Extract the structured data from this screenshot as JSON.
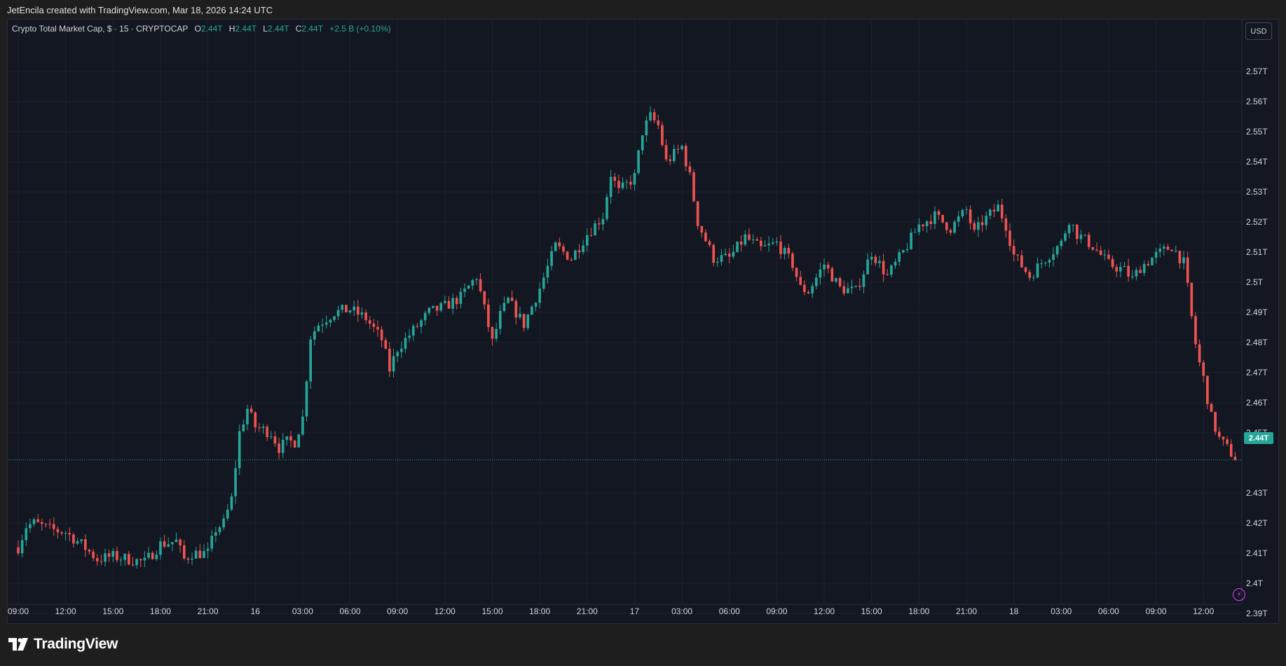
{
  "header": {
    "creator_line": "JetEncila created with TradingView.com, Mar 18, 2026 14:24 UTC"
  },
  "legend": {
    "symbol": "Crypto Total Market Cap, $ · 15 · CRYPTOCAP",
    "open_label": "O",
    "open": "2.44T",
    "high_label": "H",
    "high": "2.44T",
    "low_label": "L",
    "low": "2.44T",
    "close_label": "C",
    "close": "2.44T",
    "change": "+2.5 B (+0.10%)"
  },
  "currency": "USD",
  "last_price_label": "2.44T",
  "brand": {
    "name": "TradingView"
  },
  "colors": {
    "background": "#131722",
    "up": "#26a69a",
    "down": "#ef5350",
    "grid": "#1e222d",
    "axis_text": "#d1d4dc"
  },
  "chart_data": {
    "type": "candlestick",
    "title": "Crypto Total Market Cap, $ · 15 · CRYPTOCAP",
    "ylabel": "",
    "ylim": [
      2.385,
      2.575
    ],
    "last_price": 2.441,
    "y_ticks": [
      {
        "value": 2.57,
        "label": "2.57T"
      },
      {
        "value": 2.56,
        "label": "2.56T"
      },
      {
        "value": 2.55,
        "label": "2.55T"
      },
      {
        "value": 2.54,
        "label": "2.54T"
      },
      {
        "value": 2.53,
        "label": "2.53T"
      },
      {
        "value": 2.52,
        "label": "2.52T"
      },
      {
        "value": 2.51,
        "label": "2.51T"
      },
      {
        "value": 2.5,
        "label": "2.5T"
      },
      {
        "value": 2.49,
        "label": "2.49T"
      },
      {
        "value": 2.48,
        "label": "2.48T"
      },
      {
        "value": 2.47,
        "label": "2.47T"
      },
      {
        "value": 2.46,
        "label": "2.46T"
      },
      {
        "value": 2.45,
        "label": "2.45T"
      },
      {
        "value": 2.43,
        "label": "2.43T"
      },
      {
        "value": 2.42,
        "label": "2.42T"
      },
      {
        "value": 2.41,
        "label": "2.41T"
      },
      {
        "value": 2.4,
        "label": "2.4T"
      },
      {
        "value": 2.39,
        "label": "2.39T"
      }
    ],
    "x_ticks": [
      {
        "hour": 0,
        "label": "09:00"
      },
      {
        "hour": 3,
        "label": "12:00"
      },
      {
        "hour": 6,
        "label": "15:00"
      },
      {
        "hour": 9,
        "label": "18:00"
      },
      {
        "hour": 12,
        "label": "21:00"
      },
      {
        "hour": 15,
        "label": "16"
      },
      {
        "hour": 18,
        "label": "03:00"
      },
      {
        "hour": 21,
        "label": "06:00"
      },
      {
        "hour": 24,
        "label": "09:00"
      },
      {
        "hour": 27,
        "label": "12:00"
      },
      {
        "hour": 30,
        "label": "15:00"
      },
      {
        "hour": 33,
        "label": "18:00"
      },
      {
        "hour": 36,
        "label": "21:00"
      },
      {
        "hour": 39,
        "label": "17"
      },
      {
        "hour": 42,
        "label": "03:00"
      },
      {
        "hour": 45,
        "label": "06:00"
      },
      {
        "hour": 48,
        "label": "09:00"
      },
      {
        "hour": 51,
        "label": "12:00"
      },
      {
        "hour": 54,
        "label": "15:00"
      },
      {
        "hour": 57,
        "label": "18:00"
      },
      {
        "hour": 60,
        "label": "21:00"
      },
      {
        "hour": 63,
        "label": "18"
      },
      {
        "hour": 66,
        "label": "03:00"
      },
      {
        "hour": 69,
        "label": "06:00"
      },
      {
        "hour": 72,
        "label": "09:00"
      },
      {
        "hour": 75,
        "label": "12:00"
      }
    ],
    "x_range_hours": [
      0,
      77.4
    ],
    "candle_interval_hours": 0.25,
    "close_path": [
      [
        0,
        2.412
      ],
      [
        0.5,
        2.419
      ],
      [
        1,
        2.42
      ],
      [
        2,
        2.418
      ],
      [
        3,
        2.417
      ],
      [
        4,
        2.413
      ],
      [
        5,
        2.408
      ],
      [
        6,
        2.409
      ],
      [
        7,
        2.408
      ],
      [
        8,
        2.407
      ],
      [
        9,
        2.413
      ],
      [
        10,
        2.414
      ],
      [
        10.5,
        2.408
      ],
      [
        11,
        2.41
      ],
      [
        12,
        2.41
      ],
      [
        12.5,
        2.418
      ],
      [
        13,
        2.42
      ],
      [
        13.5,
        2.428
      ],
      [
        14,
        2.45
      ],
      [
        14.5,
        2.458
      ],
      [
        15,
        2.452
      ],
      [
        16,
        2.45
      ],
      [
        16.5,
        2.445
      ],
      [
        17,
        2.447
      ],
      [
        17.5,
        2.447
      ],
      [
        18,
        2.455
      ],
      [
        18.5,
        2.482
      ],
      [
        19,
        2.486
      ],
      [
        20,
        2.49
      ],
      [
        21,
        2.491
      ],
      [
        22,
        2.488
      ],
      [
        23,
        2.481
      ],
      [
        23.5,
        2.471
      ],
      [
        24,
        2.478
      ],
      [
        25,
        2.484
      ],
      [
        26,
        2.49
      ],
      [
        27,
        2.492
      ],
      [
        28,
        2.495
      ],
      [
        29,
        2.502
      ],
      [
        30,
        2.48
      ],
      [
        30.5,
        2.489
      ],
      [
        31,
        2.494
      ],
      [
        32,
        2.486
      ],
      [
        33,
        2.498
      ],
      [
        34,
        2.512
      ],
      [
        35,
        2.508
      ],
      [
        36,
        2.516
      ],
      [
        37,
        2.522
      ],
      [
        37.5,
        2.536
      ],
      [
        38,
        2.53
      ],
      [
        39,
        2.535
      ],
      [
        39.5,
        2.55
      ],
      [
        40,
        2.555
      ],
      [
        40.5,
        2.552
      ],
      [
        41,
        2.54
      ],
      [
        42,
        2.545
      ],
      [
        42.5,
        2.535
      ],
      [
        43,
        2.52
      ],
      [
        43.5,
        2.514
      ],
      [
        44,
        2.508
      ],
      [
        45,
        2.508
      ],
      [
        46,
        2.515
      ],
      [
        47,
        2.511
      ],
      [
        48,
        2.513
      ],
      [
        49,
        2.506
      ],
      [
        49.5,
        2.498
      ],
      [
        50,
        2.497
      ],
      [
        51,
        2.506
      ],
      [
        52,
        2.498
      ],
      [
        53,
        2.497
      ],
      [
        54,
        2.51
      ],
      [
        55,
        2.502
      ],
      [
        56,
        2.51
      ],
      [
        57,
        2.519
      ],
      [
        58,
        2.522
      ],
      [
        59,
        2.518
      ],
      [
        60,
        2.524
      ],
      [
        60.5,
        2.516
      ],
      [
        61,
        2.52
      ],
      [
        62,
        2.525
      ],
      [
        62.5,
        2.519
      ],
      [
        63,
        2.509
      ],
      [
        64,
        2.502
      ],
      [
        65,
        2.508
      ],
      [
        66,
        2.513
      ],
      [
        66.5,
        2.521
      ],
      [
        67,
        2.516
      ],
      [
        68,
        2.512
      ],
      [
        69,
        2.506
      ],
      [
        70,
        2.504
      ],
      [
        70.5,
        2.501
      ],
      [
        71,
        2.505
      ],
      [
        72,
        2.509
      ],
      [
        73,
        2.512
      ],
      [
        73.8,
        2.506
      ],
      [
        74.2,
        2.49
      ],
      [
        74.6,
        2.476
      ],
      [
        75,
        2.468
      ],
      [
        75.5,
        2.455
      ],
      [
        76,
        2.448
      ],
      [
        77.1,
        2.441
      ]
    ]
  }
}
